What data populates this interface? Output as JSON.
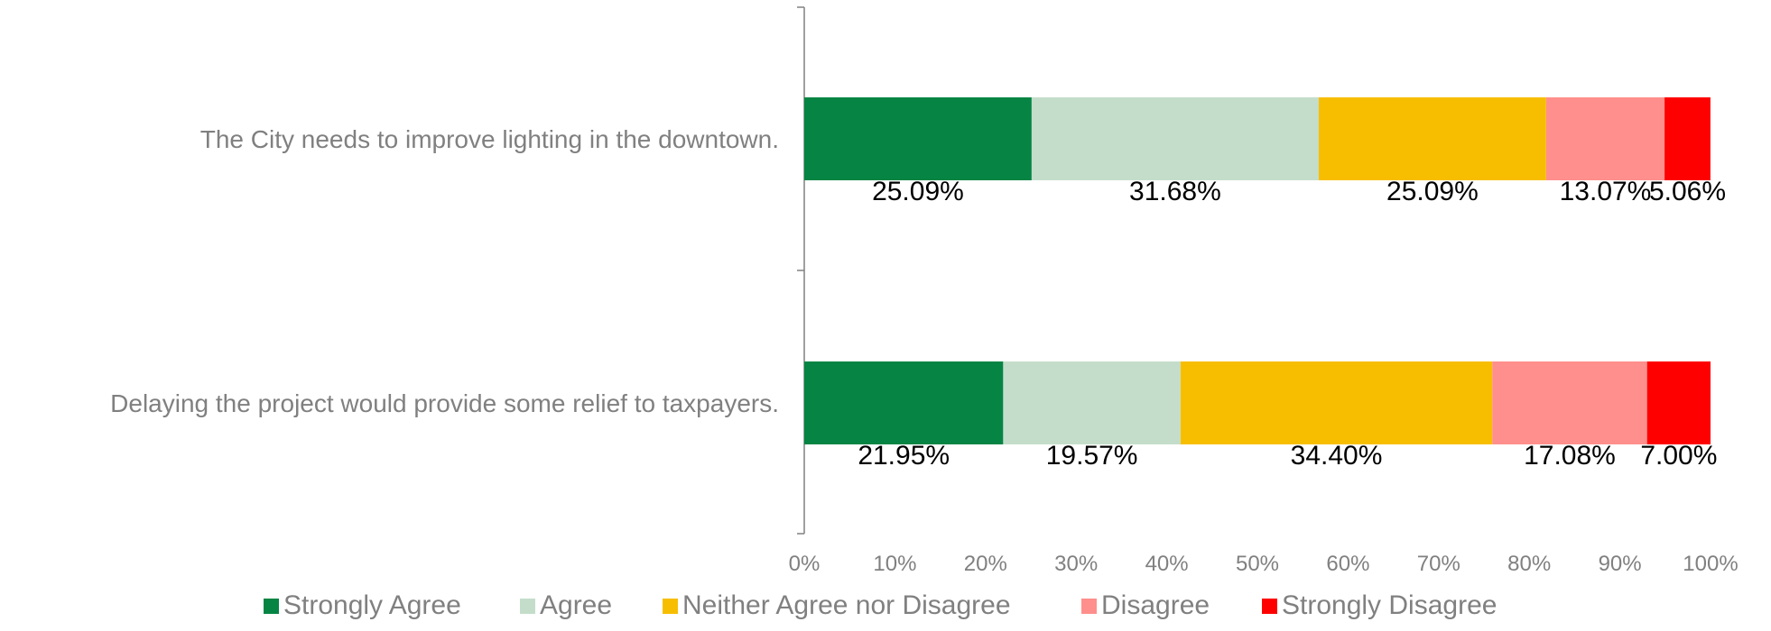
{
  "chart_data": {
    "type": "bar",
    "orientation": "horizontal",
    "stacked": true,
    "percent_stacked": true,
    "categories": [
      "The City needs to improve lighting in the downtown.",
      "Delaying the project would provide some relief to taxpayers."
    ],
    "series": [
      {
        "name": "Strongly Agree",
        "color": "#068443",
        "values": [
          25.09,
          21.95
        ],
        "labels": [
          "25.09%",
          "21.95%"
        ]
      },
      {
        "name": "Agree",
        "color": "#C4DDCA",
        "values": [
          31.68,
          19.57
        ],
        "labels": [
          "31.68%",
          "19.57%"
        ]
      },
      {
        "name": "Neither Agree nor Disagree",
        "color": "#F7BE00",
        "values": [
          25.09,
          34.4
        ],
        "labels": [
          "25.09%",
          "34.40%"
        ]
      },
      {
        "name": "Disagree",
        "color": "#FF8F8C",
        "values": [
          13.07,
          17.08
        ],
        "labels": [
          "13.07%",
          "17.08%"
        ]
      },
      {
        "name": "Strongly Disagree",
        "color": "#FF0000",
        "values": [
          5.06,
          7.0
        ],
        "labels": [
          "5.06%",
          "7.00%"
        ]
      }
    ],
    "xlim": [
      0,
      100
    ],
    "xticks": [
      0,
      10,
      20,
      30,
      40,
      50,
      60,
      70,
      80,
      90,
      100
    ],
    "xtick_labels": [
      "0%",
      "10%",
      "20%",
      "30%",
      "40%",
      "50%",
      "60%",
      "70%",
      "80%",
      "90%",
      "100%"
    ],
    "title": "",
    "xlabel": "",
    "ylabel": "",
    "grid": false,
    "legend_position": "bottom"
  }
}
